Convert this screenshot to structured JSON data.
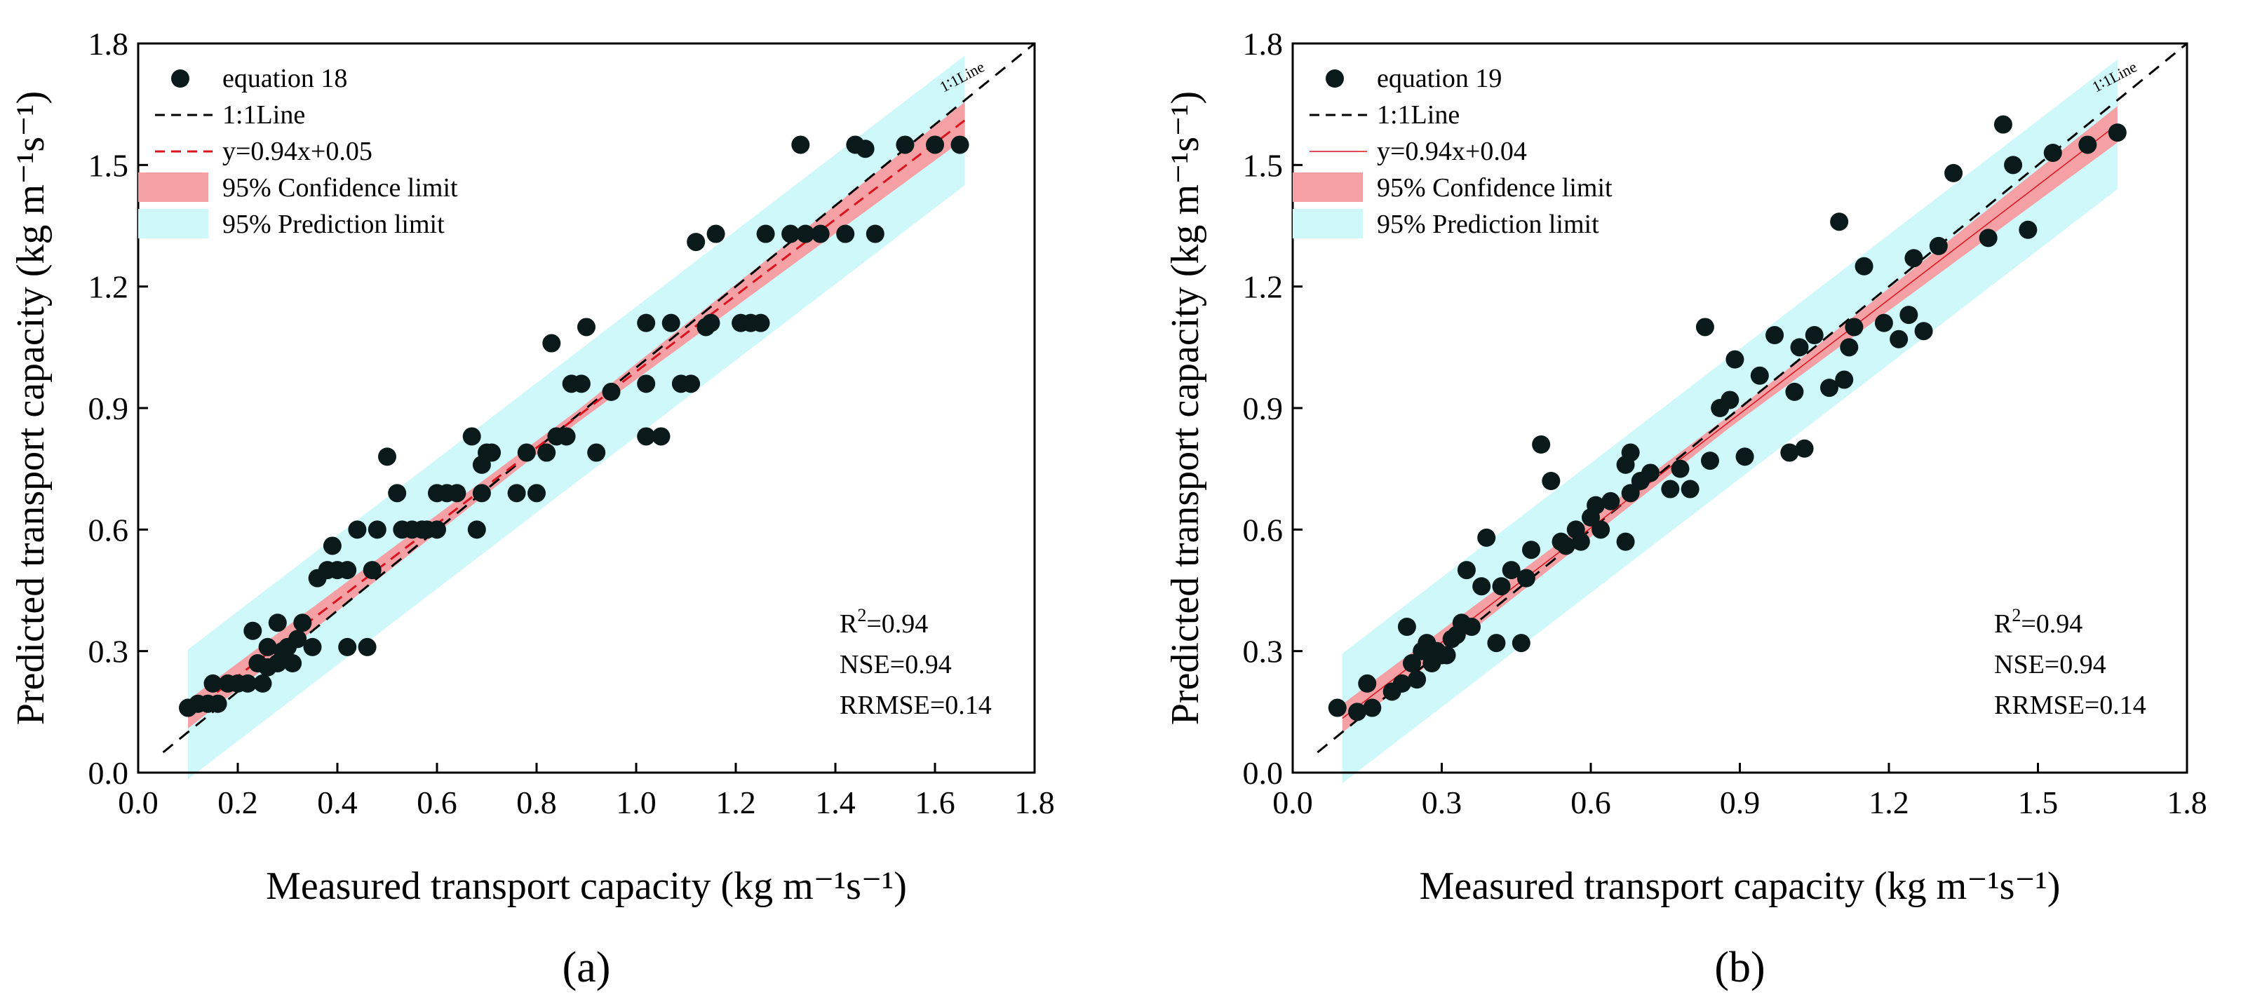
{
  "colors": {
    "point": "#0a1a1a",
    "fit_line": "#d9141e",
    "confidence_band": "#f4a0a4",
    "prediction_band": "#cff8fb",
    "identity_line": "#000000"
  },
  "chart_data": [
    {
      "type": "scatter",
      "panel_label": "(a)",
      "xlabel": "Measured transport capacity (kg m⁻¹s⁻¹)",
      "ylabel": "Predicted transport capacity (kg m⁻¹s⁻¹)",
      "xlim": [
        0,
        1.8
      ],
      "ylim": [
        0,
        1.8
      ],
      "xticks": [
        "0.0",
        "0.2",
        "0.4",
        "0.6",
        "0.8",
        "1.0",
        "1.2",
        "1.4",
        "1.6",
        "1.8"
      ],
      "xtick_values": [
        0,
        0.2,
        0.4,
        0.6,
        0.8,
        1.0,
        1.2,
        1.4,
        1.6,
        1.8
      ],
      "yticks": [
        "0.0",
        "0.3",
        "0.6",
        "0.9",
        "1.2",
        "1.5",
        "1.8"
      ],
      "ytick_values": [
        0,
        0.3,
        0.6,
        0.9,
        1.2,
        1.5,
        1.8
      ],
      "grid": false,
      "legend": {
        "position": "top-left",
        "entries": [
          "equation 18",
          "1:1Line",
          "y=0.94x+0.05",
          "95% Confidence limit",
          "95% Prediction limit"
        ],
        "fit_style": "dashed"
      },
      "identity_label": "1∶1Line",
      "fit": {
        "slope": 0.94,
        "intercept": 0.05,
        "range": [
          0.1,
          1.66
        ]
      },
      "prediction_halfwidth": 0.16,
      "confidence_halfwidth": [
        0.035,
        0.015,
        0.045
      ],
      "stats": {
        "r2_label": "R",
        "r2_sup": "2",
        "r2_value": "=0.94",
        "nse": "NSE=0.94",
        "rrmse": "RRMSE=0.14"
      },
      "points": [
        [
          0.1,
          0.16
        ],
        [
          0.12,
          0.17
        ],
        [
          0.14,
          0.17
        ],
        [
          0.15,
          0.22
        ],
        [
          0.16,
          0.17
        ],
        [
          0.18,
          0.22
        ],
        [
          0.2,
          0.22
        ],
        [
          0.22,
          0.22
        ],
        [
          0.23,
          0.35
        ],
        [
          0.24,
          0.27
        ],
        [
          0.25,
          0.22
        ],
        [
          0.26,
          0.26
        ],
        [
          0.26,
          0.31
        ],
        [
          0.28,
          0.27
        ],
        [
          0.28,
          0.37
        ],
        [
          0.29,
          0.3
        ],
        [
          0.3,
          0.31
        ],
        [
          0.31,
          0.27
        ],
        [
          0.32,
          0.33
        ],
        [
          0.33,
          0.37
        ],
        [
          0.35,
          0.31
        ],
        [
          0.36,
          0.48
        ],
        [
          0.38,
          0.5
        ],
        [
          0.39,
          0.56
        ],
        [
          0.4,
          0.5
        ],
        [
          0.42,
          0.5
        ],
        [
          0.42,
          0.31
        ],
        [
          0.44,
          0.6
        ],
        [
          0.46,
          0.31
        ],
        [
          0.47,
          0.5
        ],
        [
          0.48,
          0.6
        ],
        [
          0.5,
          0.78
        ],
        [
          0.52,
          0.69
        ],
        [
          0.53,
          0.6
        ],
        [
          0.55,
          0.6
        ],
        [
          0.57,
          0.6
        ],
        [
          0.58,
          0.6
        ],
        [
          0.6,
          0.6
        ],
        [
          0.6,
          0.69
        ],
        [
          0.62,
          0.69
        ],
        [
          0.64,
          0.69
        ],
        [
          0.67,
          0.83
        ],
        [
          0.68,
          0.6
        ],
        [
          0.69,
          0.69
        ],
        [
          0.69,
          0.76
        ],
        [
          0.7,
          0.79
        ],
        [
          0.71,
          0.79
        ],
        [
          0.76,
          0.69
        ],
        [
          0.78,
          0.79
        ],
        [
          0.8,
          0.69
        ],
        [
          0.82,
          0.79
        ],
        [
          0.83,
          1.06
        ],
        [
          0.84,
          0.83
        ],
        [
          0.86,
          0.83
        ],
        [
          0.87,
          0.96
        ],
        [
          0.89,
          0.96
        ],
        [
          0.9,
          1.1
        ],
        [
          0.92,
          0.79
        ],
        [
          0.95,
          0.94
        ],
        [
          1.02,
          0.96
        ],
        [
          1.02,
          1.11
        ],
        [
          1.02,
          0.83
        ],
        [
          1.05,
          0.83
        ],
        [
          1.07,
          1.11
        ],
        [
          1.09,
          0.96
        ],
        [
          1.11,
          0.96
        ],
        [
          1.12,
          1.31
        ],
        [
          1.14,
          1.1
        ],
        [
          1.15,
          1.11
        ],
        [
          1.16,
          1.33
        ],
        [
          1.21,
          1.11
        ],
        [
          1.23,
          1.11
        ],
        [
          1.25,
          1.11
        ],
        [
          1.26,
          1.33
        ],
        [
          1.31,
          1.33
        ],
        [
          1.33,
          1.55
        ],
        [
          1.34,
          1.33
        ],
        [
          1.37,
          1.33
        ],
        [
          1.42,
          1.33
        ],
        [
          1.44,
          1.55
        ],
        [
          1.46,
          1.54
        ],
        [
          1.48,
          1.33
        ],
        [
          1.54,
          1.55
        ],
        [
          1.6,
          1.55
        ],
        [
          1.65,
          1.55
        ]
      ]
    },
    {
      "type": "scatter",
      "panel_label": "(b)",
      "xlabel": "Measured transport capacity (kg m⁻¹s⁻¹)",
      "ylabel": "Predicted transport capacity (kg m⁻¹s⁻¹)",
      "xlim": [
        0,
        1.8
      ],
      "ylim": [
        0,
        1.8
      ],
      "xticks": [
        "0.0",
        "0.3",
        "0.6",
        "0.9",
        "1.2",
        "1.5",
        "1.8"
      ],
      "xtick_values": [
        0,
        0.3,
        0.6,
        0.9,
        1.2,
        1.5,
        1.8
      ],
      "yticks": [
        "0.0",
        "0.3",
        "0.6",
        "0.9",
        "1.2",
        "1.5",
        "1.8"
      ],
      "ytick_values": [
        0,
        0.3,
        0.6,
        0.9,
        1.2,
        1.5,
        1.8
      ],
      "grid": false,
      "legend": {
        "position": "top-left",
        "entries": [
          "equation 19",
          "1:1Line",
          "y=0.94x+0.04",
          "95% Confidence limit",
          "95% Prediction limit"
        ],
        "fit_style": "solid"
      },
      "identity_label": "1∶1Line",
      "fit": {
        "slope": 0.94,
        "intercept": 0.04,
        "range": [
          0.1,
          1.66
        ]
      },
      "prediction_halfwidth": 0.16,
      "confidence_halfwidth": [
        0.035,
        0.015,
        0.045
      ],
      "stats": {
        "r2_label": "R",
        "r2_sup": "2",
        "r2_value": "=0.94",
        "nse": "NSE=0.94",
        "rrmse": "RRMSE=0.14"
      },
      "points": [
        [
          0.09,
          0.16
        ],
        [
          0.13,
          0.15
        ],
        [
          0.15,
          0.22
        ],
        [
          0.16,
          0.16
        ],
        [
          0.2,
          0.2
        ],
        [
          0.22,
          0.22
        ],
        [
          0.23,
          0.36
        ],
        [
          0.24,
          0.27
        ],
        [
          0.25,
          0.23
        ],
        [
          0.26,
          0.3
        ],
        [
          0.27,
          0.32
        ],
        [
          0.28,
          0.27
        ],
        [
          0.29,
          0.3
        ],
        [
          0.3,
          0.29
        ],
        [
          0.31,
          0.29
        ],
        [
          0.32,
          0.33
        ],
        [
          0.33,
          0.34
        ],
        [
          0.34,
          0.37
        ],
        [
          0.35,
          0.5
        ],
        [
          0.36,
          0.36
        ],
        [
          0.38,
          0.46
        ],
        [
          0.39,
          0.58
        ],
        [
          0.41,
          0.32
        ],
        [
          0.42,
          0.46
        ],
        [
          0.44,
          0.5
        ],
        [
          0.46,
          0.32
        ],
        [
          0.47,
          0.48
        ],
        [
          0.48,
          0.55
        ],
        [
          0.5,
          0.81
        ],
        [
          0.52,
          0.72
        ],
        [
          0.54,
          0.57
        ],
        [
          0.55,
          0.56
        ],
        [
          0.57,
          0.6
        ],
        [
          0.58,
          0.57
        ],
        [
          0.6,
          0.63
        ],
        [
          0.61,
          0.66
        ],
        [
          0.62,
          0.6
        ],
        [
          0.64,
          0.67
        ],
        [
          0.67,
          0.76
        ],
        [
          0.67,
          0.57
        ],
        [
          0.68,
          0.69
        ],
        [
          0.68,
          0.79
        ],
        [
          0.7,
          0.72
        ],
        [
          0.72,
          0.74
        ],
        [
          0.76,
          0.7
        ],
        [
          0.78,
          0.75
        ],
        [
          0.8,
          0.7
        ],
        [
          0.83,
          1.1
        ],
        [
          0.84,
          0.77
        ],
        [
          0.86,
          0.9
        ],
        [
          0.88,
          0.92
        ],
        [
          0.89,
          1.02
        ],
        [
          0.91,
          0.78
        ],
        [
          0.94,
          0.98
        ],
        [
          0.97,
          1.08
        ],
        [
          1.0,
          0.79
        ],
        [
          1.01,
          0.94
        ],
        [
          1.02,
          1.05
        ],
        [
          1.03,
          0.8
        ],
        [
          1.05,
          1.08
        ],
        [
          1.08,
          0.95
        ],
        [
          1.1,
          1.36
        ],
        [
          1.11,
          0.97
        ],
        [
          1.12,
          1.05
        ],
        [
          1.13,
          1.1
        ],
        [
          1.15,
          1.25
        ],
        [
          1.19,
          1.11
        ],
        [
          1.22,
          1.07
        ],
        [
          1.24,
          1.13
        ],
        [
          1.25,
          1.27
        ],
        [
          1.27,
          1.09
        ],
        [
          1.3,
          1.3
        ],
        [
          1.33,
          1.48
        ],
        [
          1.4,
          1.32
        ],
        [
          1.43,
          1.6
        ],
        [
          1.45,
          1.5
        ],
        [
          1.48,
          1.34
        ],
        [
          1.53,
          1.53
        ],
        [
          1.6,
          1.55
        ],
        [
          1.66,
          1.58
        ]
      ]
    }
  ]
}
